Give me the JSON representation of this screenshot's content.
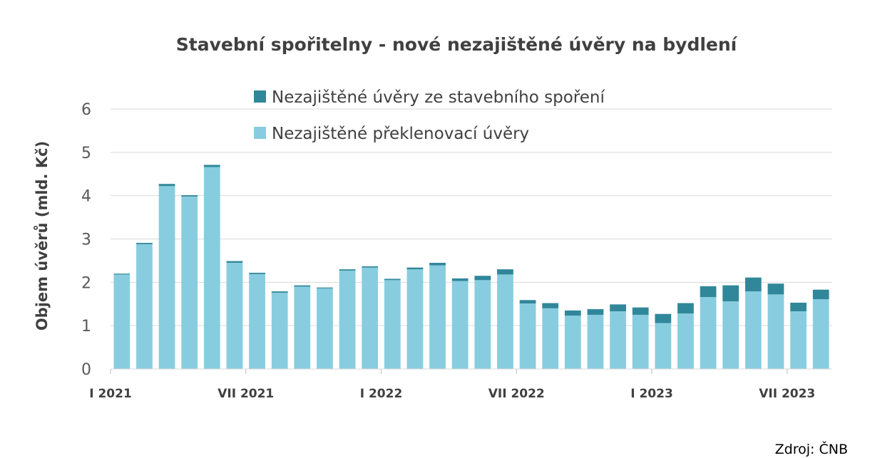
{
  "chart_data": {
    "type": "bar",
    "stacked": true,
    "title": "Stavební spořitelny - nové nezajištěné úvěry na bydlení",
    "ylabel": "Objem úvěrů (mld. Kč)",
    "xlabel": "",
    "ylim": [
      0,
      6
    ],
    "yticks": [
      "0",
      "1",
      "2",
      "3",
      "4",
      "5",
      "6"
    ],
    "grid": true,
    "legend_position": "top",
    "source": "Zdroj: ČNB",
    "x_tick_labels": [
      {
        "index": 0,
        "label": "I 2021"
      },
      {
        "index": 6,
        "label": "VII 2021"
      },
      {
        "index": 12,
        "label": "I 2022"
      },
      {
        "index": 18,
        "label": "VII 2022"
      },
      {
        "index": 24,
        "label": "I 2023"
      },
      {
        "index": 30,
        "label": "VII 2023"
      }
    ],
    "categories": [
      "I 2021",
      "II 2021",
      "III 2021",
      "IV 2021",
      "V 2021",
      "VI 2021",
      "VII 2021",
      "VIII 2021",
      "IX 2021",
      "X 2021",
      "XI 2021",
      "XII 2021",
      "I 2022",
      "II 2022",
      "III 2022",
      "IV 2022",
      "V 2022",
      "VI 2022",
      "VII 2022",
      "VIII 2022",
      "IX 2022",
      "X 2022",
      "XI 2022",
      "XII 2022",
      "I 2023",
      "II 2023",
      "III 2023",
      "IV 2023",
      "V 2023",
      "VI 2023",
      "VII 2023",
      "VIII 2023"
    ],
    "series": [
      {
        "name": "Nezajištěné překlenovací úvěry",
        "color": "#88cddf",
        "values": [
          2.18,
          2.88,
          4.22,
          3.98,
          4.66,
          2.45,
          2.19,
          1.76,
          1.9,
          1.86,
          2.27,
          2.34,
          2.05,
          2.3,
          2.39,
          2.03,
          2.05,
          2.18,
          1.51,
          1.4,
          1.23,
          1.25,
          1.33,
          1.25,
          1.06,
          1.28,
          1.66,
          1.56,
          1.79,
          1.72,
          1.33,
          1.61
        ]
      },
      {
        "name": "Nezajištěné úvěry ze stavebního spoření",
        "color": "#31879a",
        "values": [
          0.02,
          0.03,
          0.05,
          0.03,
          0.05,
          0.04,
          0.03,
          0.03,
          0.03,
          0.02,
          0.03,
          0.03,
          0.03,
          0.04,
          0.06,
          0.06,
          0.1,
          0.12,
          0.08,
          0.12,
          0.12,
          0.13,
          0.16,
          0.17,
          0.21,
          0.24,
          0.25,
          0.37,
          0.32,
          0.25,
          0.2,
          0.22
        ]
      }
    ],
    "legend": [
      {
        "label": "Nezajištěné úvěry ze stavebního spoření",
        "color": "#31879a"
      },
      {
        "label": "Nezajištěné překlenovací úvěry",
        "color": "#88cddf"
      }
    ]
  }
}
